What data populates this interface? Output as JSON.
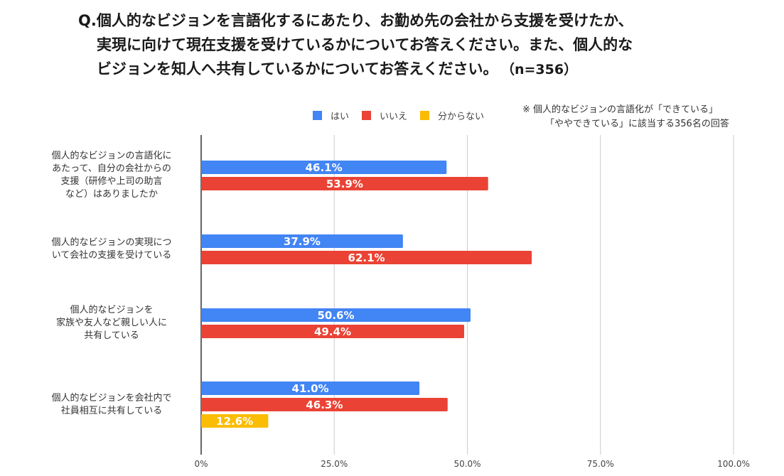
{
  "title": {
    "line1": "Q.個人的なビジョンを言語化するにあたり、お勤め先の会社から支援を受けたか、",
    "line2": "実現に向けて現在支援を受けているかについてお答えください。また、個人的な",
    "line3": "ビジョンを知人へ共有しているかについてお答えください。",
    "n": "（n=356）"
  },
  "note": {
    "line1": "※ 個人的なビジョンの言語化が「できている」",
    "line2": "「ややできている」に該当する356名の回答"
  },
  "chart_data": {
    "type": "bar",
    "orientation": "horizontal",
    "categories": [
      "個人的なビジョンの言語化にあたって、自分の会社からの支援（研修や上司の助言など）はありましたか",
      "個人的なビジョンの実現について会社の支援を受けている",
      "個人的なビジョンを家族や友人など親しい人に共有している",
      "個人的なビジョンを会社内で社員相互に共有している"
    ],
    "category_lines": [
      [
        "個人的なビジョンの言語化に",
        "あたって、自分の会社からの",
        "支援（研修や上司の助言",
        "など）はありましたか"
      ],
      [
        "個人的なビジョンの実現につ",
        "いて会社の支援を受けている"
      ],
      [
        "個人的なビジョンを",
        "家族や友人など親しい人に",
        "共有している"
      ],
      [
        "個人的なビジョンを会社内で",
        "社員相互に共有している"
      ]
    ],
    "series": [
      {
        "name": "はい",
        "color": "#4285f4",
        "values": [
          46.1,
          37.9,
          50.6,
          41.0
        ]
      },
      {
        "name": "いいえ",
        "color": "#ea4335",
        "values": [
          53.9,
          62.1,
          49.4,
          46.3
        ]
      },
      {
        "name": "分からない",
        "color": "#fbbc04",
        "values": [
          null,
          null,
          null,
          12.6
        ]
      }
    ],
    "xlim": [
      0,
      100
    ],
    "xticks": [
      0,
      25,
      50,
      75,
      100
    ],
    "xtick_labels": [
      "0%",
      "25.0%",
      "50.0%",
      "75.0%",
      "100.0%"
    ],
    "value_suffix": "%",
    "legend_position": "top"
  }
}
